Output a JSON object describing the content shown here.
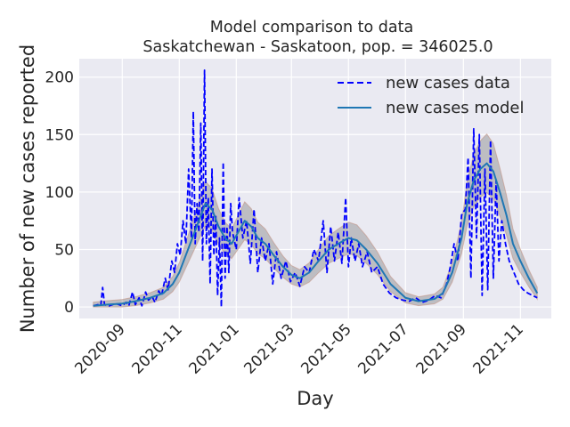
{
  "chart_data": {
    "type": "line",
    "title": "Model comparison to data",
    "subtitle": "Saskatchewan - Saskatoon, pop. = 346025.0",
    "xlabel": "Day",
    "ylabel": "Number of new cases reported",
    "x_ticks": [
      "2020-09",
      "2020-11",
      "2021-01",
      "2021-03",
      "2021-05",
      "2021-07",
      "2021-09",
      "2021-11"
    ],
    "y_ticks": [
      0,
      50,
      100,
      150,
      200
    ],
    "xlim": [
      "2020-07-17",
      "2021-12-04"
    ],
    "ylim": [
      -10,
      216
    ],
    "grid": true,
    "legend_position": "top-right",
    "legend": [
      {
        "name": "new cases data",
        "style": "dashed",
        "color": "#0000ff"
      },
      {
        "name": "new cases model",
        "style": "solid",
        "color": "#1f77b4"
      }
    ],
    "series": [
      {
        "name": "new cases data",
        "x": [
          "2020-08-01",
          "2020-08-06",
          "2020-08-09",
          "2020-08-11",
          "2020-08-13",
          "2020-08-18",
          "2020-08-25",
          "2020-09-01",
          "2020-09-05",
          "2020-09-08",
          "2020-09-12",
          "2020-09-15",
          "2020-09-19",
          "2020-09-22",
          "2020-09-26",
          "2020-09-29",
          "2020-10-03",
          "2020-10-06",
          "2020-10-10",
          "2020-10-13",
          "2020-10-17",
          "2020-10-20",
          "2020-10-24",
          "2020-10-27",
          "2020-10-30",
          "2020-11-02",
          "2020-11-05",
          "2020-11-08",
          "2020-11-11",
          "2020-11-14",
          "2020-11-16",
          "2020-11-18",
          "2020-11-20",
          "2020-11-22",
          "2020-11-24",
          "2020-11-26",
          "2020-11-28",
          "2020-11-30",
          "2020-12-02",
          "2020-12-04",
          "2020-12-06",
          "2020-12-08",
          "2020-12-10",
          "2020-12-12",
          "2020-12-14",
          "2020-12-16",
          "2020-12-18",
          "2020-12-20",
          "2020-12-22",
          "2020-12-24",
          "2020-12-26",
          "2020-12-28",
          "2021-01-01",
          "2021-01-04",
          "2021-01-08",
          "2021-01-12",
          "2021-01-16",
          "2021-01-20",
          "2021-01-24",
          "2021-01-28",
          "2021-02-01",
          "2021-02-05",
          "2021-02-09",
          "2021-02-13",
          "2021-02-18",
          "2021-02-23",
          "2021-02-28",
          "2021-03-05",
          "2021-03-10",
          "2021-03-15",
          "2021-03-20",
          "2021-03-25",
          "2021-03-30",
          "2021-04-04",
          "2021-04-08",
          "2021-04-12",
          "2021-04-16",
          "2021-04-20",
          "2021-04-24",
          "2021-04-28",
          "2021-05-01",
          "2021-05-04",
          "2021-05-08",
          "2021-05-12",
          "2021-05-16",
          "2021-05-21",
          "2021-05-26",
          "2021-06-01",
          "2021-06-07",
          "2021-06-14",
          "2021-06-21",
          "2021-06-28",
          "2021-07-05",
          "2021-07-12",
          "2021-07-19",
          "2021-07-26",
          "2021-08-02",
          "2021-08-08",
          "2021-08-14",
          "2021-08-18",
          "2021-08-22",
          "2021-08-26",
          "2021-08-30",
          "2021-09-03",
          "2021-09-06",
          "2021-09-09",
          "2021-09-12",
          "2021-09-15",
          "2021-09-18",
          "2021-09-21",
          "2021-09-24",
          "2021-09-27",
          "2021-09-30",
          "2021-10-03",
          "2021-10-06",
          "2021-10-09",
          "2021-10-12",
          "2021-10-16",
          "2021-10-20",
          "2021-10-25",
          "2021-10-30",
          "2021-11-04",
          "2021-11-09",
          "2021-11-14",
          "2021-11-19"
        ],
        "y": [
          1,
          2,
          1,
          17,
          2,
          1,
          3,
          1,
          4,
          1,
          13,
          2,
          8,
          1,
          13,
          6,
          9,
          4,
          14,
          10,
          25,
          15,
          40,
          30,
          55,
          45,
          75,
          55,
          120,
          60,
          170,
          55,
          90,
          65,
          160,
          40,
          206,
          55,
          95,
          20,
          120,
          45,
          80,
          10,
          60,
          0,
          126,
          25,
          70,
          30,
          90,
          65,
          50,
          95,
          60,
          75,
          38,
          85,
          30,
          60,
          40,
          55,
          20,
          48,
          25,
          40,
          22,
          30,
          18,
          35,
          30,
          50,
          40,
          75,
          30,
          70,
          40,
          65,
          38,
          95,
          35,
          60,
          40,
          55,
          35,
          48,
          30,
          35,
          20,
          12,
          8,
          6,
          5,
          8,
          4,
          6,
          10,
          8,
          20,
          35,
          55,
          40,
          80,
          85,
          130,
          25,
          155,
          60,
          150,
          10,
          120,
          15,
          145,
          25,
          110,
          40,
          75,
          55,
          40,
          30,
          20,
          15,
          12,
          10,
          8
        ],
        "color": "#0000ff"
      },
      {
        "name": "new cases model",
        "x": [
          "2020-08-01",
          "2020-08-15",
          "2020-09-01",
          "2020-09-15",
          "2020-10-01",
          "2020-10-15",
          "2020-10-25",
          "2020-11-01",
          "2020-11-08",
          "2020-11-15",
          "2020-11-22",
          "2020-11-29",
          "2020-12-06",
          "2020-12-13",
          "2020-12-20",
          "2020-12-27",
          "2021-01-03",
          "2021-01-10",
          "2021-01-17",
          "2021-01-24",
          "2021-02-01",
          "2021-02-10",
          "2021-02-20",
          "2021-03-01",
          "2021-03-10",
          "2021-03-20",
          "2021-03-30",
          "2021-04-10",
          "2021-04-20",
          "2021-05-01",
          "2021-05-10",
          "2021-05-20",
          "2021-06-01",
          "2021-06-15",
          "2021-07-01",
          "2021-07-15",
          "2021-08-01",
          "2021-08-10",
          "2021-08-20",
          "2021-08-30",
          "2021-09-05",
          "2021-09-12",
          "2021-09-19",
          "2021-09-26",
          "2021-10-03",
          "2021-10-10",
          "2021-10-17",
          "2021-10-24",
          "2021-11-01",
          "2021-11-10",
          "2021-11-19"
        ],
        "y": [
          1,
          2,
          3,
          5,
          8,
          12,
          20,
          30,
          45,
          60,
          75,
          90,
          85,
          70,
          60,
          55,
          65,
          75,
          70,
          60,
          55,
          45,
          35,
          28,
          25,
          30,
          40,
          50,
          55,
          60,
          58,
          50,
          38,
          20,
          8,
          5,
          7,
          12,
          30,
          60,
          90,
          110,
          120,
          125,
          118,
          100,
          80,
          55,
          40,
          25,
          12
        ],
        "color": "#1f77b4"
      }
    ]
  }
}
